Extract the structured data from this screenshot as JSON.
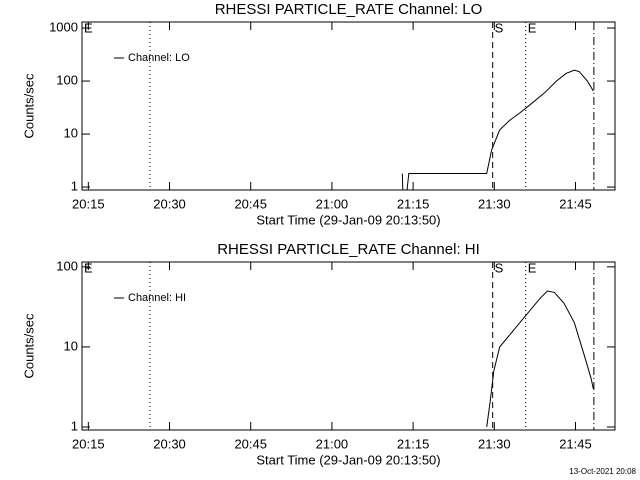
{
  "chart_data": [
    {
      "type": "line",
      "title": "RHESSI PARTICLE_RATE Channel: LO",
      "xlabel": "Start Time (29-Jan-09 20:13:50)",
      "ylabel": "Counts/sec",
      "log_y": true,
      "legend": "upper left",
      "xlim": [
        1213.83,
        1312.3
      ],
      "ylim": [
        0.88,
        1300
      ],
      "xticks": [
        {
          "value": 1215,
          "label": "20:15"
        },
        {
          "value": 1230,
          "label": "20:30"
        },
        {
          "value": 1245,
          "label": "20:45"
        },
        {
          "value": 1260,
          "label": "21:00"
        },
        {
          "value": 1275,
          "label": "21:15"
        },
        {
          "value": 1290,
          "label": "21:30"
        },
        {
          "value": 1305,
          "label": "21:45"
        }
      ],
      "yticks": [
        1,
        10,
        100,
        1000
      ],
      "markers": [
        {
          "x": 1226.4,
          "style": "dotted"
        },
        {
          "x": 1289.7,
          "style": "dashed"
        },
        {
          "x": 1295.8,
          "style": "dotted"
        },
        {
          "x": 1308.4,
          "style": "dashdot"
        }
      ],
      "annotations": [
        {
          "text": "E",
          "x": 1213.83
        },
        {
          "text": "S",
          "x": 1289.7
        },
        {
          "text": "E",
          "x": 1295.8
        }
      ],
      "series": [
        {
          "name": "Channel: LO",
          "color": "#000000",
          "x": [
            1273.0,
            1273.1,
            1273.5,
            1273.9,
            1274.2,
            1288.6,
            1289.5,
            1291.0,
            1292.8,
            1294.7,
            1296.5,
            1299.3,
            1301.5,
            1303.3,
            1304.8,
            1305.7,
            1307.2,
            1308.3
          ],
          "values": [
            1.8,
            0.9,
            null,
            0.9,
            1.8,
            1.8,
            5,
            12,
            18,
            25,
            35,
            60,
            100,
            140,
            160,
            150,
            100,
            65
          ]
        }
      ]
    },
    {
      "type": "line",
      "title": "RHESSI PARTICLE_RATE Channel: HI",
      "xlabel": "Start Time (29-Jan-09 20:13:50)",
      "ylabel": "Counts/sec",
      "log_y": true,
      "legend": "upper left",
      "xlim": [
        1213.83,
        1312.3
      ],
      "ylim": [
        0.917,
        115
      ],
      "xticks": [
        {
          "value": 1215,
          "label": "20:15"
        },
        {
          "value": 1230,
          "label": "20:30"
        },
        {
          "value": 1245,
          "label": "20:45"
        },
        {
          "value": 1260,
          "label": "21:00"
        },
        {
          "value": 1275,
          "label": "21:15"
        },
        {
          "value": 1290,
          "label": "21:30"
        },
        {
          "value": 1305,
          "label": "21:45"
        }
      ],
      "yticks": [
        1,
        10,
        100
      ],
      "markers": [
        {
          "x": 1226.4,
          "style": "dotted"
        },
        {
          "x": 1289.7,
          "style": "dashed"
        },
        {
          "x": 1295.8,
          "style": "dotted"
        },
        {
          "x": 1308.4,
          "style": "dashdot"
        }
      ],
      "annotations": [
        {
          "text": "E",
          "x": 1213.83
        },
        {
          "text": "S",
          "x": 1289.7
        },
        {
          "text": "E",
          "x": 1295.8
        }
      ],
      "series": [
        {
          "name": "Channel: HI",
          "color": "#000000",
          "x": [
            1288.6,
            1289.2,
            1289.9,
            1291.0,
            1292.8,
            1294.7,
            1296.5,
            1298.4,
            1299.8,
            1301.1,
            1302.9,
            1304.8,
            1306.6,
            1307.9,
            1308.3
          ],
          "values": [
            1,
            2,
            5,
            10,
            14,
            20,
            28,
            40,
            50,
            48,
            35,
            20,
            8,
            4,
            3
          ]
        }
      ]
    }
  ],
  "footer": "13-Oct-2021 20:08"
}
